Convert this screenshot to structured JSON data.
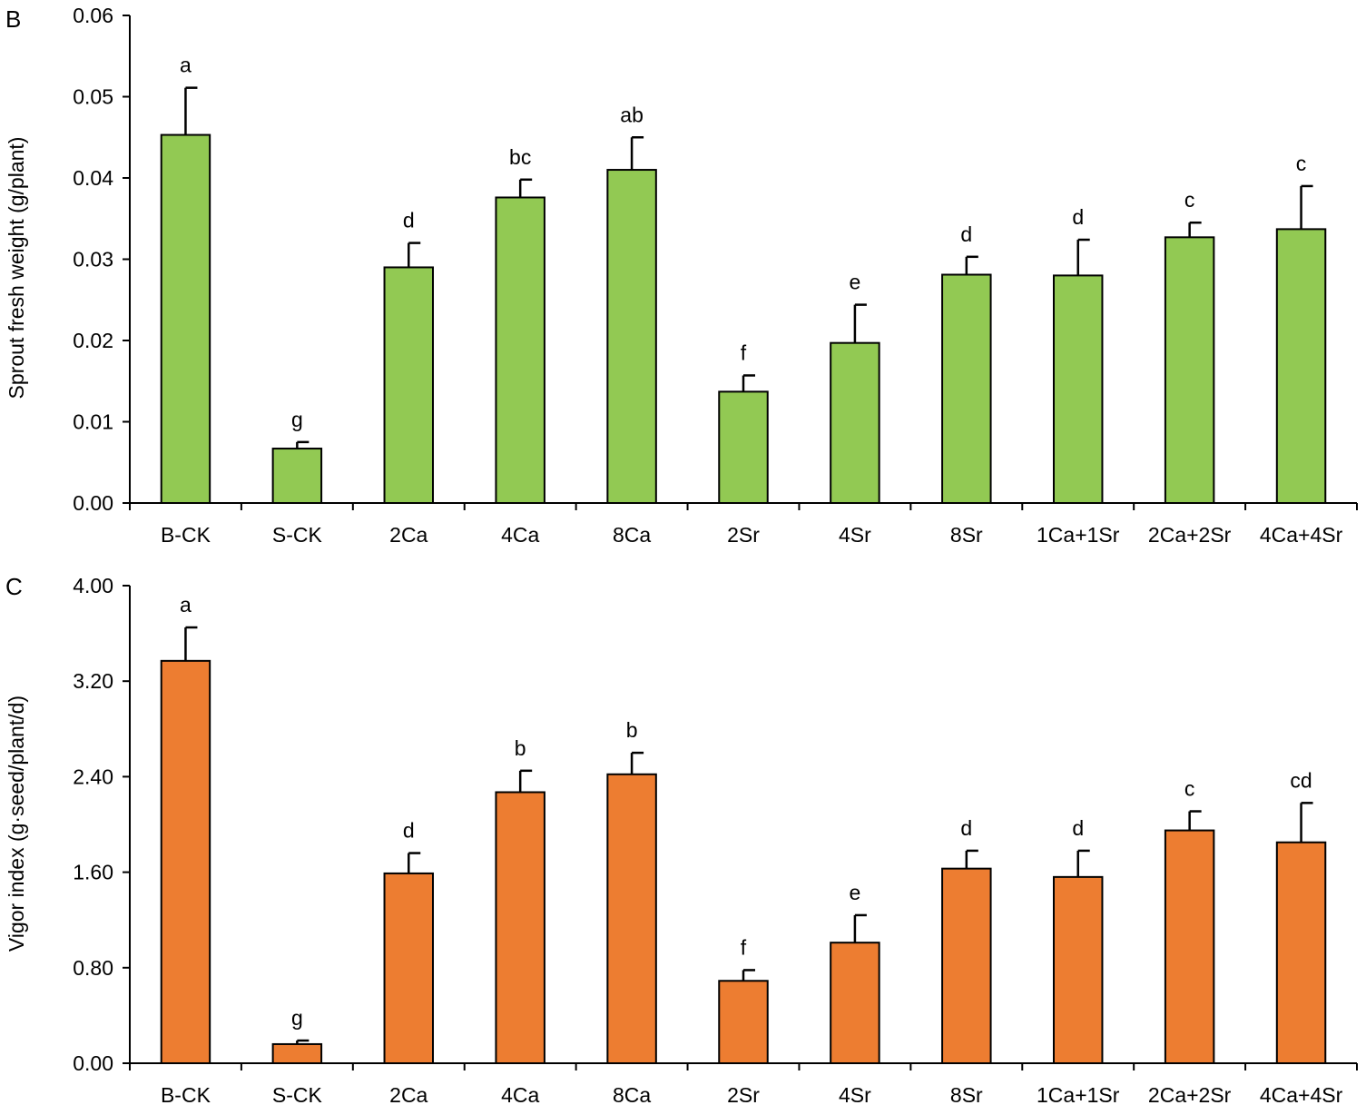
{
  "chart_data": [
    {
      "type": "bar",
      "panel": "B",
      "ylabel": "Sprout fresh weight (g/plant)",
      "xlabel": "",
      "ylim": [
        0,
        0.06
      ],
      "yticks": [
        "0.00",
        "0.01",
        "0.02",
        "0.03",
        "0.04",
        "0.05",
        "0.06"
      ],
      "categories": [
        "B-CK",
        "S-CK",
        "2Ca",
        "4Ca",
        "8Ca",
        "2Sr",
        "4Sr",
        "8Sr",
        "1Ca+1Sr",
        "2Ca+2Sr",
        "4Ca+4Sr"
      ],
      "values": [
        0.0453,
        0.0067,
        0.029,
        0.0376,
        0.041,
        0.0137,
        0.0197,
        0.0281,
        0.028,
        0.0327,
        0.0337
      ],
      "errors": [
        0.0058,
        0.0008,
        0.003,
        0.0022,
        0.004,
        0.002,
        0.0047,
        0.0022,
        0.0044,
        0.0018,
        0.0053
      ],
      "letters": [
        "a",
        "g",
        "d",
        "bc",
        "ab",
        "f",
        "e",
        "d",
        "d",
        "c",
        "c"
      ],
      "color": "#92C953"
    },
    {
      "type": "bar",
      "panel": "C",
      "ylabel": "Vigor index (g·seed/plant/d)",
      "xlabel": "",
      "ylim": [
        0,
        4.0
      ],
      "yticks": [
        "0.00",
        "0.80",
        "1.60",
        "2.40",
        "3.20",
        "4.00"
      ],
      "categories": [
        "B-CK",
        "S-CK",
        "2Ca",
        "4Ca",
        "8Ca",
        "2Sr",
        "4Sr",
        "8Sr",
        "1Ca+1Sr",
        "2Ca+2Sr",
        "4Ca+4Sr"
      ],
      "values": [
        3.37,
        0.16,
        1.59,
        2.27,
        2.42,
        0.69,
        1.01,
        1.63,
        1.56,
        1.95,
        1.85
      ],
      "errors": [
        0.28,
        0.03,
        0.17,
        0.18,
        0.18,
        0.09,
        0.23,
        0.15,
        0.22,
        0.16,
        0.33
      ],
      "letters": [
        "a",
        "g",
        "d",
        "b",
        "b",
        "f",
        "e",
        "d",
        "d",
        "c",
        "cd"
      ],
      "color": "#ED7D31"
    }
  ]
}
